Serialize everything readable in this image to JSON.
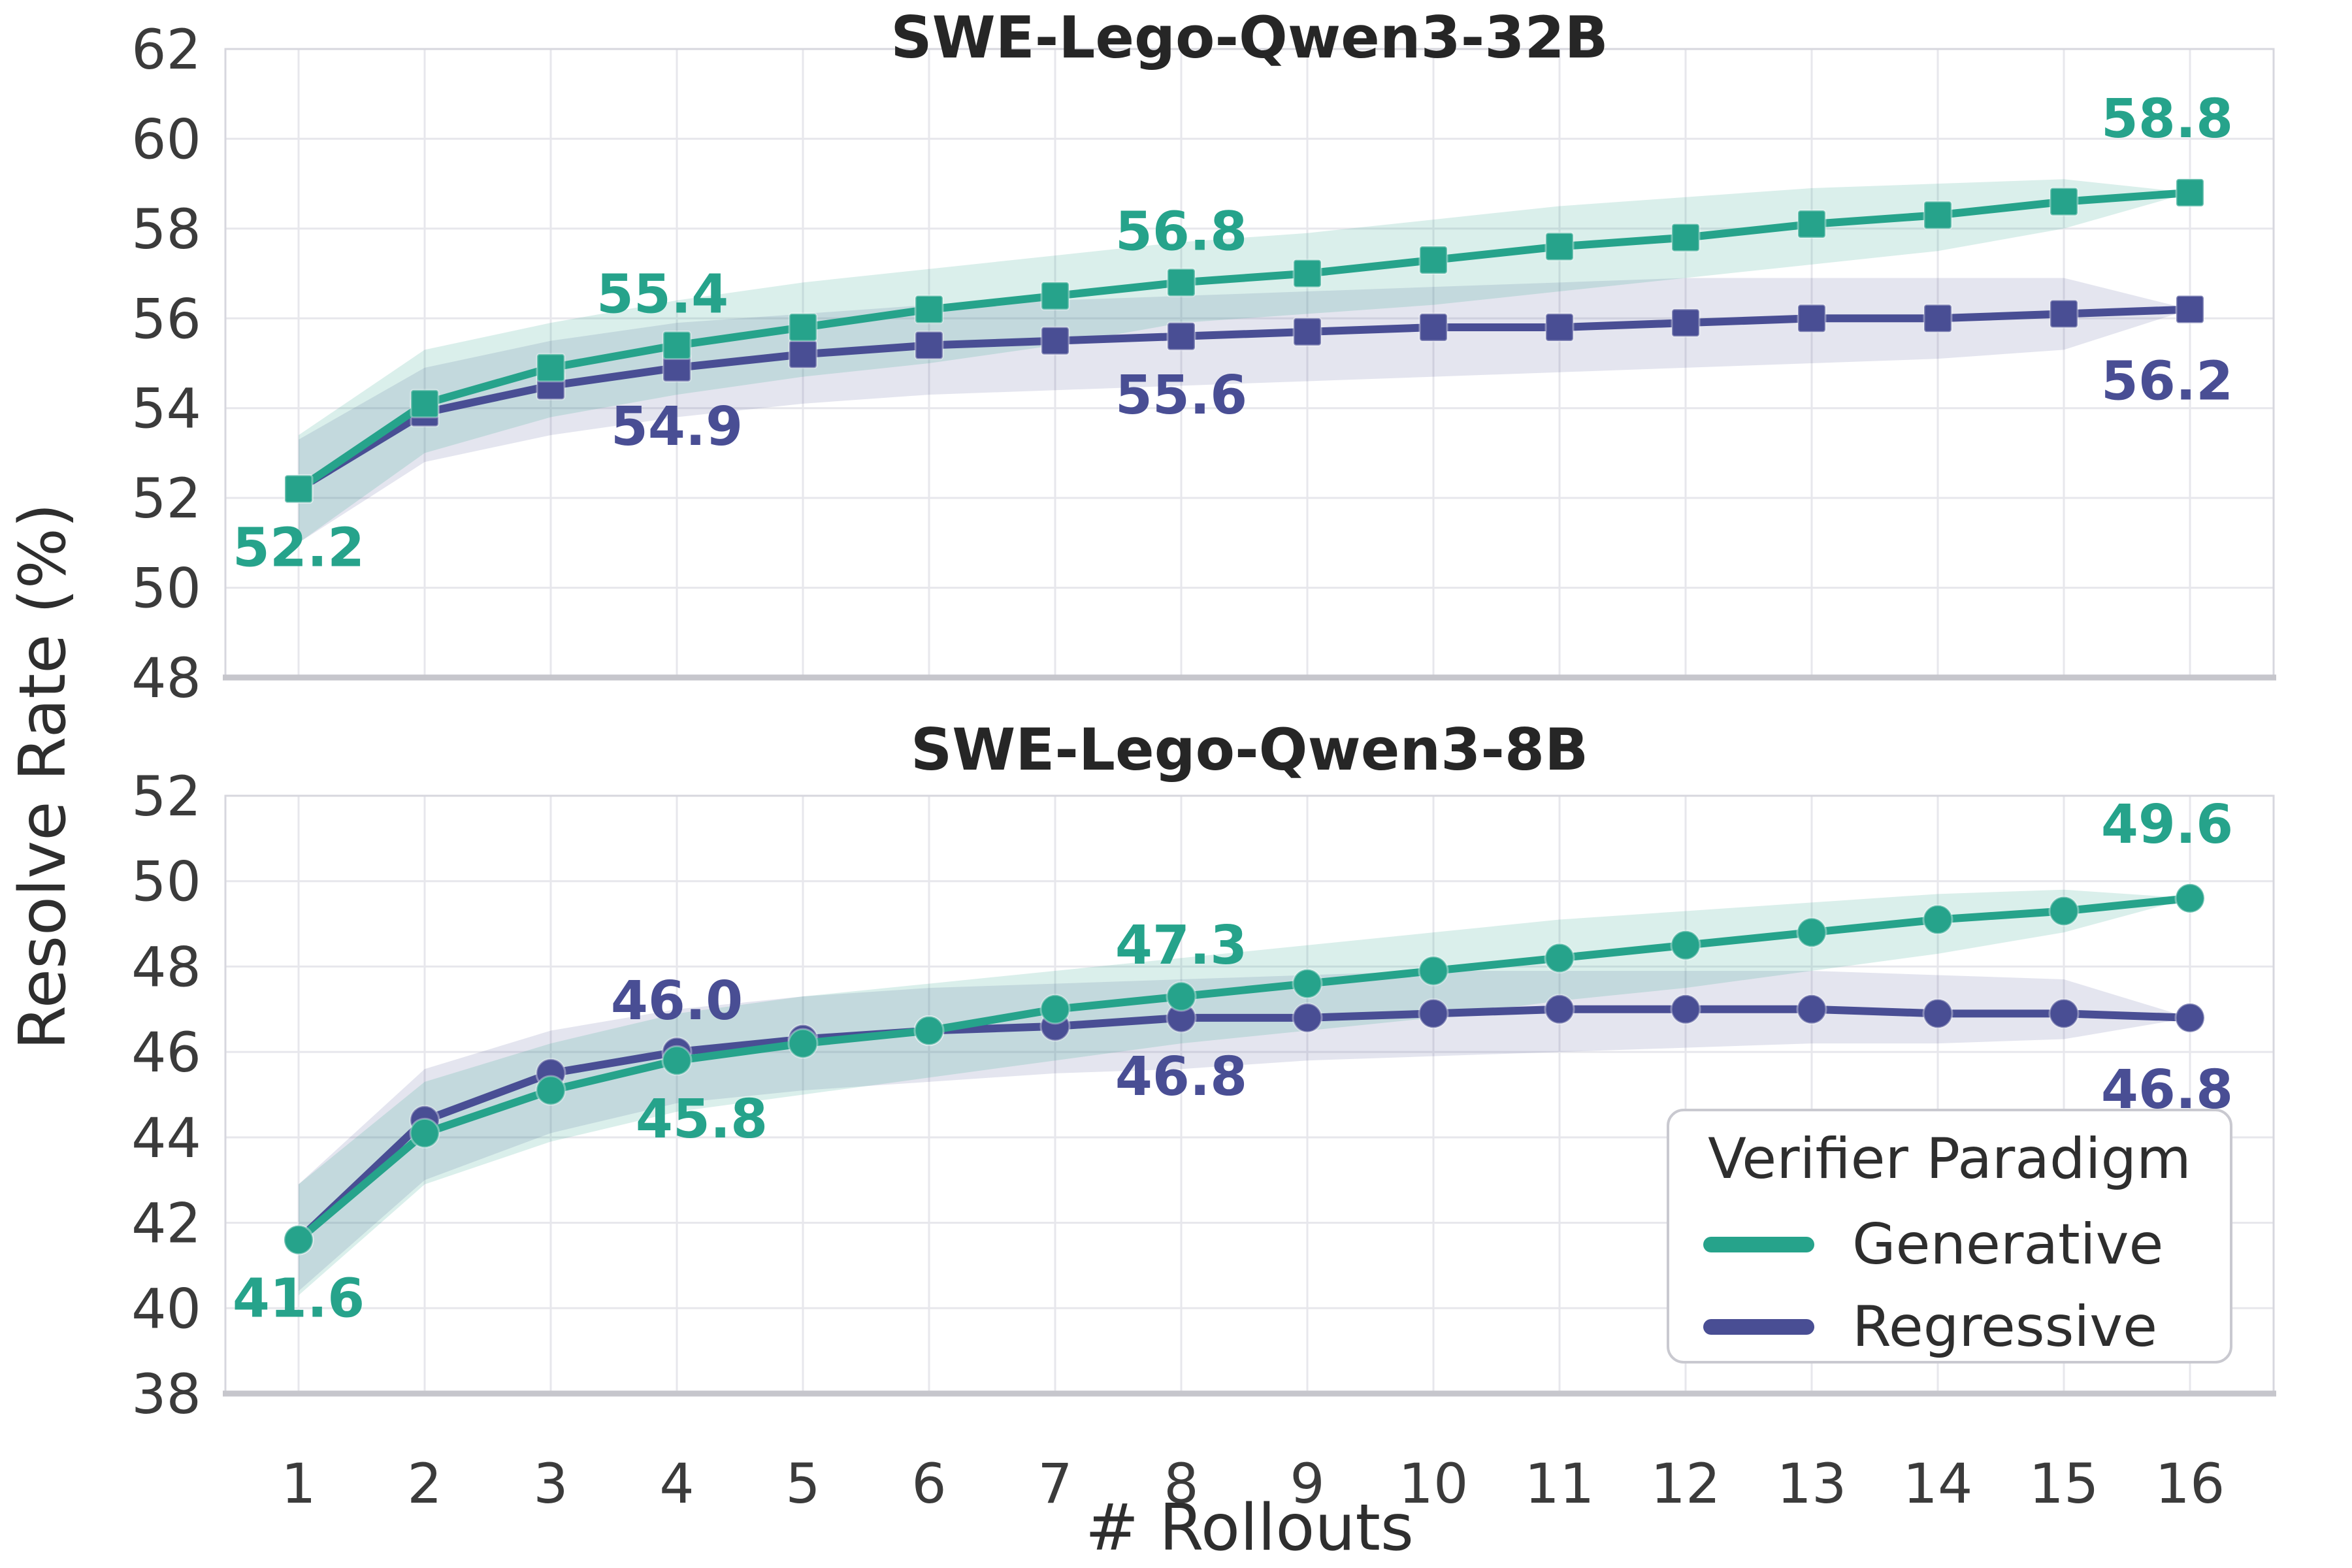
{
  "figure": {
    "background": "#ffffff",
    "ylabel": "Resolve Rate (%)",
    "xlabel": "# Rollouts",
    "grid_color": "#e7e7ec",
    "spine_color": "#d7d7de",
    "baseline_color": "#c6c6cc",
    "tick_color": "#3b3b3b",
    "legend": {
      "title": "Verifier Paradigm",
      "position": "lower-right-of-bottom-chart",
      "items": [
        {
          "label": "Generative",
          "color": "#26a38b"
        },
        {
          "label": "Regressive",
          "color": "#494e94"
        }
      ]
    }
  },
  "chart_data": [
    {
      "type": "line",
      "title": "SWE-Lego-Qwen3-32B",
      "xlabel": "# Rollouts",
      "ylabel": "Resolve Rate (%)",
      "marker": "square",
      "grid": true,
      "x": [
        1,
        2,
        3,
        4,
        5,
        6,
        7,
        8,
        9,
        10,
        11,
        12,
        13,
        14,
        15,
        16
      ],
      "ylim": [
        48,
        62
      ],
      "yticks": [
        48,
        50,
        52,
        54,
        56,
        58,
        60,
        62
      ],
      "series": [
        {
          "name": "Regressive",
          "color": "#494e94",
          "band_color": "rgba(73,78,148,0.15)",
          "values": [
            52.2,
            53.9,
            54.5,
            54.9,
            55.2,
            55.4,
            55.5,
            55.6,
            55.7,
            55.8,
            55.8,
            55.9,
            56.0,
            56.0,
            56.1,
            56.2
          ],
          "band_lower": [
            51.0,
            52.8,
            53.4,
            53.8,
            54.1,
            54.3,
            54.4,
            54.5,
            54.6,
            54.7,
            54.8,
            54.9,
            55.0,
            55.1,
            55.3,
            56.2
          ],
          "band_upper": [
            53.3,
            54.9,
            55.5,
            55.9,
            56.1,
            56.3,
            56.4,
            56.5,
            56.6,
            56.7,
            56.8,
            56.9,
            56.9,
            56.9,
            56.9,
            56.2
          ]
        },
        {
          "name": "Generative",
          "color": "#26a38b",
          "band_color": "rgba(38,163,139,0.17)",
          "values": [
            52.2,
            54.1,
            54.9,
            55.4,
            55.8,
            56.2,
            56.5,
            56.8,
            57.0,
            57.3,
            57.6,
            57.8,
            58.1,
            58.3,
            58.6,
            58.8
          ],
          "band_lower": [
            51.0,
            53.0,
            53.8,
            54.3,
            54.7,
            55.0,
            55.4,
            55.9,
            56.1,
            56.3,
            56.6,
            56.9,
            57.2,
            57.5,
            58.0,
            58.8
          ],
          "band_upper": [
            53.4,
            55.3,
            55.9,
            56.4,
            56.8,
            57.1,
            57.4,
            57.7,
            57.9,
            58.2,
            58.5,
            58.7,
            58.9,
            59.0,
            59.1,
            58.8
          ]
        }
      ],
      "annotations": [
        {
          "series": "Generative",
          "x": 1,
          "text": "52.2",
          "placement": "below"
        },
        {
          "series": "Generative",
          "x": 4,
          "text": "55.4",
          "placement": "above-left"
        },
        {
          "series": "Regressive",
          "x": 4,
          "text": "54.9",
          "placement": "below"
        },
        {
          "series": "Generative",
          "x": 8,
          "text": "56.8",
          "placement": "above"
        },
        {
          "series": "Regressive",
          "x": 8,
          "text": "55.6",
          "placement": "below"
        },
        {
          "series": "Generative",
          "x": 16,
          "text": "58.8",
          "placement": "above-end"
        },
        {
          "series": "Regressive",
          "x": 16,
          "text": "56.2",
          "placement": "below-end"
        }
      ]
    },
    {
      "type": "line",
      "title": "SWE-Lego-Qwen3-8B",
      "xlabel": "# Rollouts",
      "ylabel": "Resolve Rate (%)",
      "marker": "circle",
      "grid": true,
      "x": [
        1,
        2,
        3,
        4,
        5,
        6,
        7,
        8,
        9,
        10,
        11,
        12,
        13,
        14,
        15,
        16
      ],
      "ylim": [
        38,
        52
      ],
      "yticks": [
        38,
        40,
        42,
        44,
        46,
        48,
        50,
        52
      ],
      "series": [
        {
          "name": "Regressive",
          "color": "#494e94",
          "band_color": "rgba(73,78,148,0.15)",
          "values": [
            41.6,
            44.4,
            45.5,
            46.0,
            46.3,
            46.5,
            46.6,
            46.8,
            46.8,
            46.9,
            47.0,
            47.0,
            47.0,
            46.9,
            46.9,
            46.8
          ],
          "band_lower": [
            40.4,
            43.0,
            44.1,
            44.8,
            45.1,
            45.3,
            45.5,
            45.6,
            45.8,
            45.9,
            46.0,
            46.1,
            46.2,
            46.2,
            46.3,
            46.8
          ],
          "band_upper": [
            42.9,
            45.6,
            46.5,
            47.0,
            47.3,
            47.5,
            47.6,
            47.7,
            47.8,
            47.9,
            47.9,
            47.9,
            47.9,
            47.8,
            47.7,
            46.8
          ]
        },
        {
          "name": "Generative",
          "color": "#26a38b",
          "band_color": "rgba(38,163,139,0.17)",
          "values": [
            41.6,
            44.1,
            45.1,
            45.8,
            46.2,
            46.5,
            47.0,
            47.3,
            47.6,
            47.9,
            48.2,
            48.5,
            48.8,
            49.1,
            49.3,
            49.6
          ],
          "band_lower": [
            40.3,
            42.9,
            43.9,
            44.6,
            45.0,
            45.4,
            45.8,
            46.2,
            46.5,
            46.8,
            47.2,
            47.5,
            47.9,
            48.3,
            48.8,
            49.6
          ],
          "band_upper": [
            42.9,
            45.3,
            46.2,
            46.9,
            47.3,
            47.6,
            47.9,
            48.2,
            48.5,
            48.8,
            49.1,
            49.3,
            49.5,
            49.7,
            49.8,
            49.6
          ]
        }
      ],
      "annotations": [
        {
          "series": "Generative",
          "x": 1,
          "text": "41.6",
          "placement": "below"
        },
        {
          "series": "Regressive",
          "x": 4,
          "text": "46.0",
          "placement": "above"
        },
        {
          "series": "Generative",
          "x": 4,
          "text": "45.8",
          "placement": "below-right"
        },
        {
          "series": "Generative",
          "x": 8,
          "text": "47.3",
          "placement": "above"
        },
        {
          "series": "Regressive",
          "x": 8,
          "text": "46.8",
          "placement": "below"
        },
        {
          "series": "Generative",
          "x": 16,
          "text": "49.6",
          "placement": "above-end"
        },
        {
          "series": "Regressive",
          "x": 16,
          "text": "46.8",
          "placement": "below-end"
        }
      ]
    }
  ]
}
